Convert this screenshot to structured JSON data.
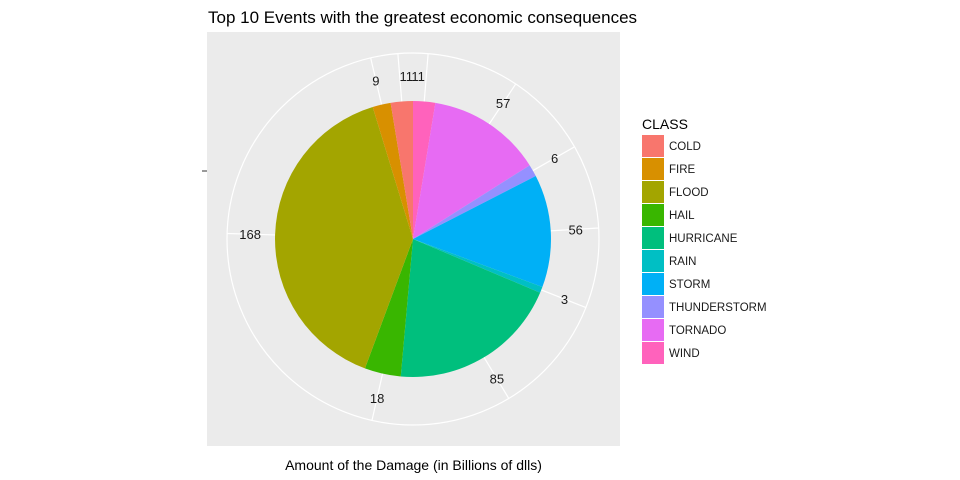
{
  "chart_data": {
    "type": "pie",
    "title": "Top 10 Events with the greatest economic consequences",
    "xlabel": "Amount of the Damage (in Billions of dlls)",
    "ylabel": "",
    "legend_title": "CLASS",
    "legend_position": "right",
    "grid": true,
    "categories": [
      "COLD",
      "FIRE",
      "FLOOD",
      "HAIL",
      "HURRICANE",
      "RAIN",
      "STORM",
      "THUNDERSTORM",
      "TORNADO",
      "WIND"
    ],
    "values": [
      11,
      9,
      168,
      18,
      85,
      3,
      56,
      6,
      57,
      11
    ],
    "colors": [
      "#F8766D",
      "#D89000",
      "#A3A500",
      "#39B600",
      "#00BF7D",
      "#00BFC4",
      "#00B0F6",
      "#9590FF",
      "#E76BF3",
      "#FF62BC"
    ],
    "slice_order_clockwise_from_top": [
      "WIND",
      "TORNADO",
      "THUNDERSTORM",
      "STORM",
      "RAIN",
      "HURRICANE",
      "HAIL",
      "FLOOD",
      "FIRE",
      "COLD"
    ]
  }
}
